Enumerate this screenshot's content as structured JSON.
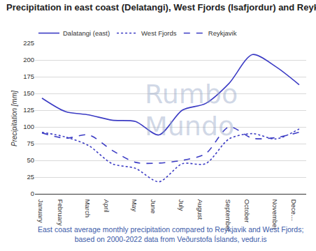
{
  "chart_data": {
    "type": "line",
    "title": "Precipitation in east coast (Delatangi), West Fjords (Isafjordur) and Reykjavik.",
    "ylabel": "Precipitation [mm]",
    "caption": [
      "East coast average monthly precipitation compared to Reykjavik and West Fjords;",
      "based on 2000-2022 data from Veðurstofa Íslands, vedur.is"
    ],
    "watermark": [
      "Rumbo",
      "Mundo"
    ],
    "categories": [
      "January",
      "February",
      "March",
      "April",
      "May",
      "June",
      "July",
      "August",
      "September",
      "October",
      "November",
      "Dece…"
    ],
    "series": [
      {
        "name": "Dalatangi (east)",
        "color": "#3b3bc4",
        "line_style": "solid",
        "values": [
          143,
          123,
          118,
          110,
          108,
          88,
          125,
          135,
          165,
          208,
          190,
          163
        ]
      },
      {
        "name": "West Fjords",
        "color": "#3b3bc4",
        "line_style": "dotted",
        "values": [
          92,
          85,
          72,
          45,
          38,
          18,
          45,
          45,
          82,
          90,
          82,
          97
        ]
      },
      {
        "name": "Reykjavik",
        "color": "#3b3bc4",
        "line_style": "dashed",
        "values": [
          91,
          83,
          88,
          65,
          47,
          46,
          50,
          60,
          100,
          83,
          84,
          92
        ]
      }
    ],
    "ylim": [
      0,
      225
    ],
    "yticks": [
      0,
      25,
      50,
      75,
      100,
      125,
      150,
      175,
      200,
      225
    ],
    "grid": true,
    "legend": "top left"
  }
}
